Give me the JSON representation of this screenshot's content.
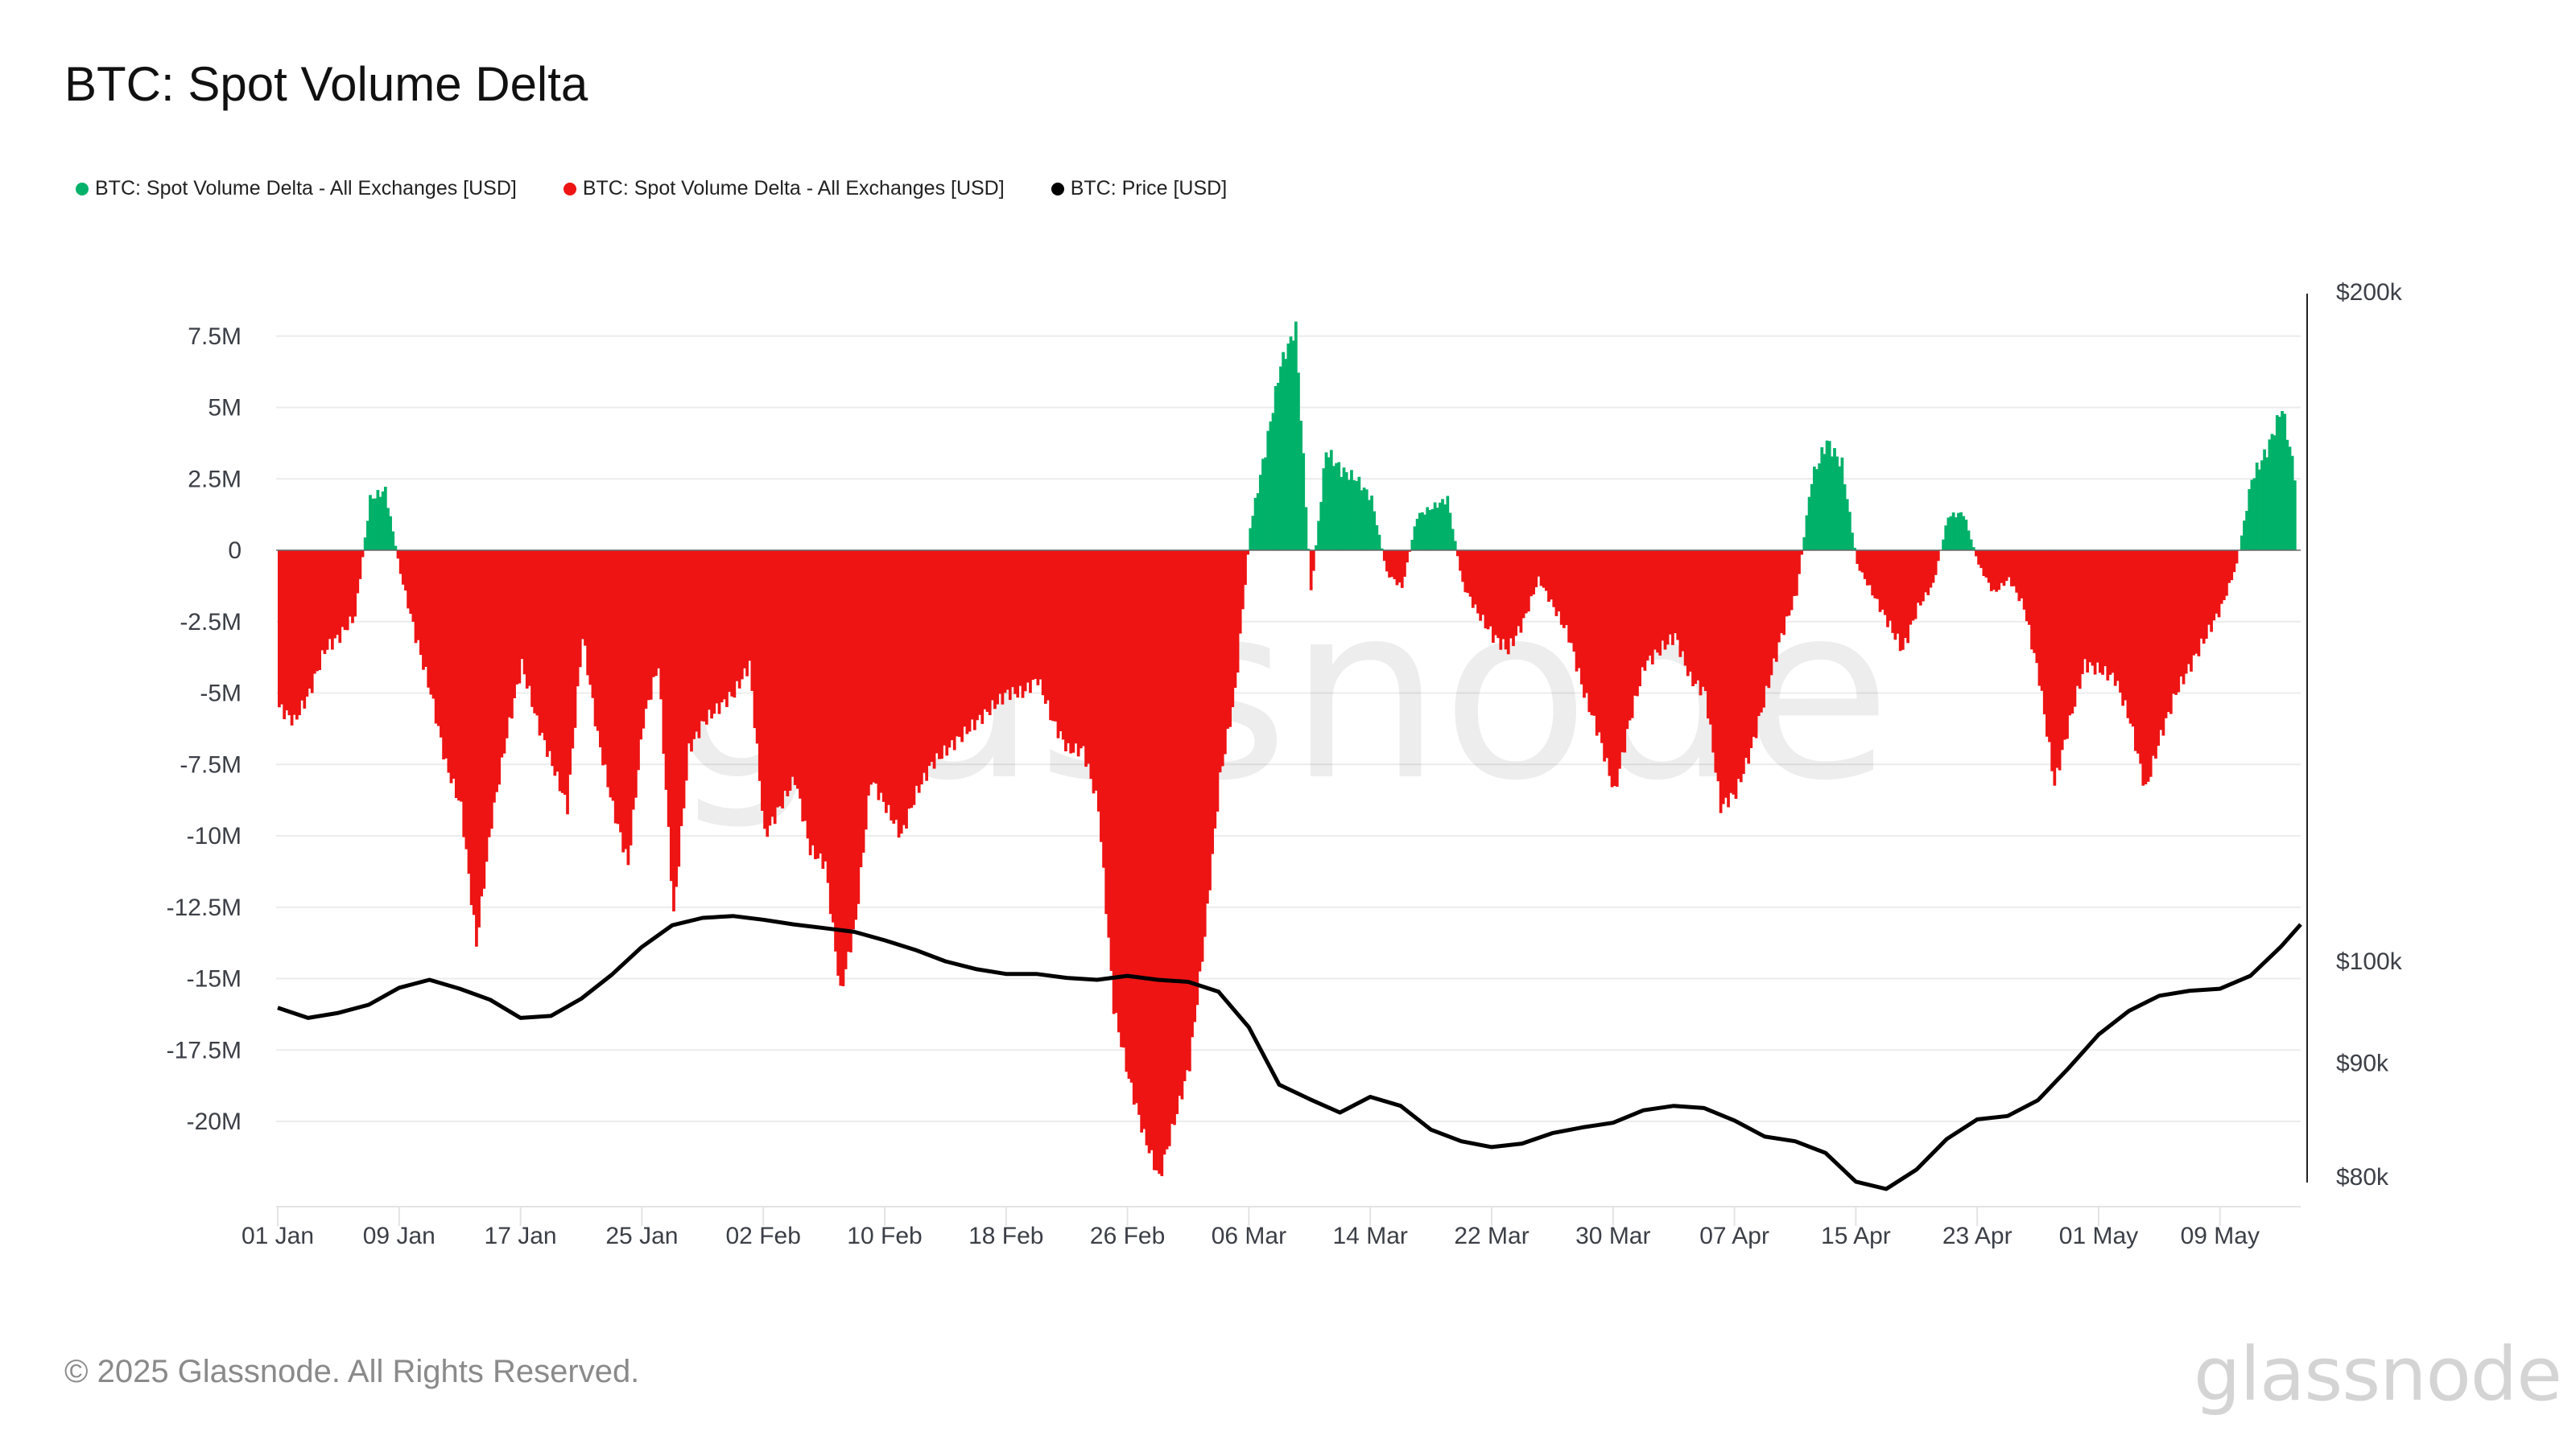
{
  "title": "BTC: Spot Volume Delta",
  "legend": [
    {
      "label": "BTC: Spot Volume Delta - All Exchanges [USD]",
      "color": "#00b16a"
    },
    {
      "label": "BTC: Spot Volume Delta - All Exchanges [USD]",
      "color": "#ee1414"
    },
    {
      "label": "BTC: Price [USD]",
      "color": "#000000"
    }
  ],
  "footer": {
    "copyright": "© 2025 Glassnode. All Rights Reserved.",
    "logo": "glassnode",
    "watermark": "glassnode"
  },
  "chart_data": {
    "type": "bar",
    "title": "BTC: Spot Volume Delta",
    "xlabel": "",
    "ylabel": "",
    "x_ticks": [
      "01 Jan",
      "09 Jan",
      "17 Jan",
      "25 Jan",
      "02 Feb",
      "10 Feb",
      "18 Feb",
      "26 Feb",
      "06 Mar",
      "14 Mar",
      "22 Mar",
      "30 Mar",
      "07 Apr",
      "15 Apr",
      "23 Apr",
      "01 May",
      "09 May"
    ],
    "y_left_ticks": [
      "7.5M",
      "5M",
      "2.5M",
      "0",
      "-2.5M",
      "-5M",
      "-7.5M",
      "-10M",
      "-12.5M",
      "-15M",
      "-17.5M",
      "-20M"
    ],
    "y_left_values": [
      7.5,
      5,
      2.5,
      0,
      -2.5,
      -5,
      -7.5,
      -10,
      -12.5,
      -15,
      -17.5,
      -20
    ],
    "y_right_ticks": [
      "$200k",
      "$100k",
      "$90k",
      "$80k"
    ],
    "y_right_values": [
      200,
      100,
      90,
      80
    ],
    "y_right_scale": "log",
    "ylim_left": [
      -22.5,
      8.5
    ],
    "x_start": "2025-01-01",
    "x_end": "2025-05-15",
    "grid": true,
    "legend_position": "top-left",
    "series": [
      {
        "name": "BTC: Spot Volume Delta - All Exchanges [USD]",
        "unit": "M USD",
        "positive_color": "#00b16a",
        "negative_color": "#ee1414",
        "day_step": 1,
        "values": [
          -5.5,
          -6,
          -5,
          -3.5,
          -3,
          -2.3,
          1.8,
          2.1,
          -0.8,
          -3,
          -5,
          -7.5,
          -9,
          -13.8,
          -9.5,
          -6.5,
          -4,
          -6,
          -7.5,
          -9,
          -3,
          -6.5,
          -9,
          -11,
          -6,
          -4,
          -12.8,
          -7,
          -6,
          -5.5,
          -5,
          -4,
          -10,
          -9,
          -8,
          -10.5,
          -11,
          -15.5,
          -13,
          -8,
          -9,
          -10,
          -8.5,
          -7.5,
          -7,
          -6.5,
          -6,
          -5.5,
          -5,
          -5,
          -4.5,
          -6,
          -7,
          -7,
          -9,
          -16,
          -18.5,
          -20.5,
          -22,
          -20,
          -18,
          -13.5,
          -8,
          -5,
          0.8,
          3.5,
          6.5,
          7.8,
          -1.5,
          3.5,
          2.8,
          2.5,
          1.8,
          -0.8,
          -1.3,
          1.2,
          1.5,
          1.8,
          -1.2,
          -2.2,
          -3,
          -3.5,
          -2.5,
          -1,
          -2,
          -3,
          -5,
          -6.5,
          -8.5,
          -6,
          -4,
          -3.5,
          -3,
          -4.5,
          -5,
          -9,
          -8.5,
          -7,
          -5,
          -3,
          -1.5,
          2.5,
          3.8,
          3,
          -0.5,
          -1.5,
          -2.5,
          -3.5,
          -2,
          -1.2,
          1.2,
          1.3,
          -0.5,
          -1.5,
          -1,
          -2,
          -4.5,
          -8.2,
          -6,
          -4,
          -4.2,
          -4.5,
          -6,
          -8.4,
          -6.5,
          -5,
          -4,
          -3,
          -2,
          -0.5,
          2.5,
          3.5,
          5,
          2.2
        ]
      },
      {
        "name": "BTC: Price [USD]",
        "unit": "k USD",
        "color": "#000000",
        "day_step": 2,
        "values": [
          95.3,
          94.3,
          94.8,
          95.6,
          97.3,
          98.1,
          97.2,
          96.1,
          94.3,
          94.5,
          96.2,
          98.6,
          101.5,
          103.8,
          104.6,
          104.8,
          104.4,
          103.9,
          103.5,
          103.1,
          102.2,
          101.2,
          100.0,
          99.2,
          98.7,
          98.7,
          98.3,
          98.1,
          98.5,
          98.1,
          97.9,
          96.9,
          93.4,
          88.0,
          86.7,
          85.5,
          86.9,
          86.1,
          84.0,
          83.0,
          82.5,
          82.8,
          83.7,
          84.2,
          84.6,
          85.7,
          86.1,
          85.9,
          84.8,
          83.4,
          83.0,
          82.0,
          79.6,
          79.0,
          80.6,
          83.2,
          84.9,
          85.2,
          86.6,
          89.5,
          92.7,
          95.0,
          96.5,
          97.0,
          97.2,
          98.5,
          101.5,
          103.9
        ]
      }
    ]
  }
}
